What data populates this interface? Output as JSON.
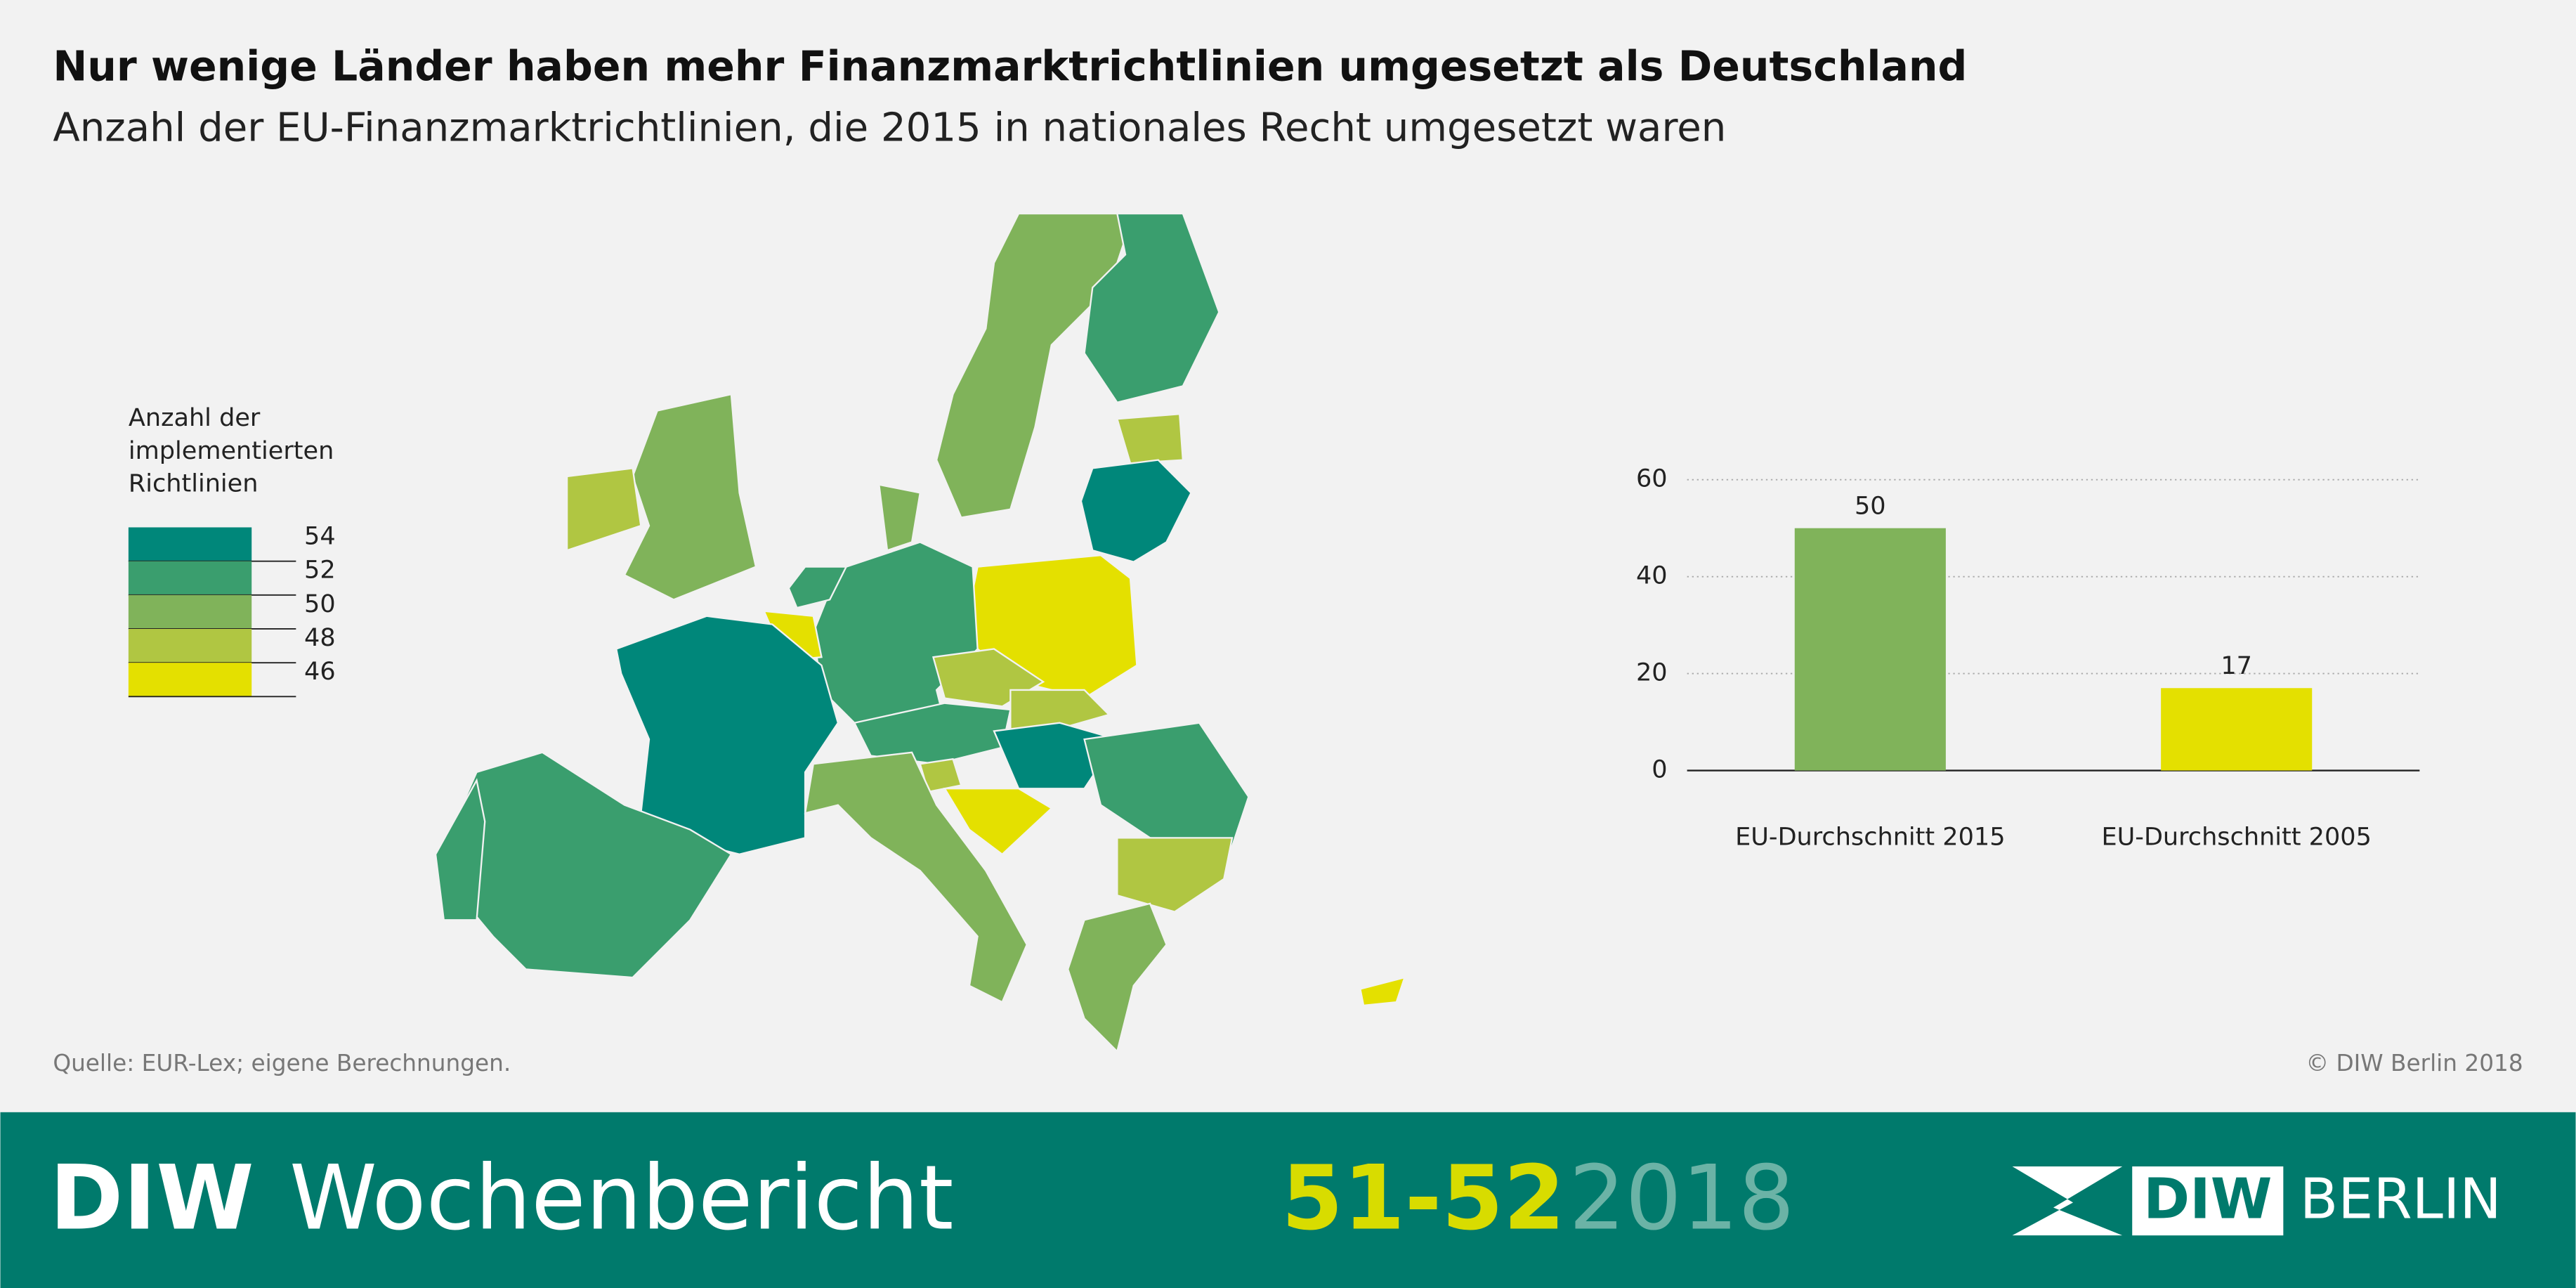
{
  "header": {
    "title": "Nur wenige Länder haben mehr Finanzmarktrichtlinien umgesetzt als Deutschland",
    "subtitle": "Anzahl der EU-Finanzmarktrichtlinien, die 2015 in nationales Recht umgesetzt waren"
  },
  "chart_data": [
    {
      "type": "map",
      "legend_title": [
        "Anzahl der",
        "implementierten",
        "Richtlinien"
      ],
      "legend": [
        {
          "value": 54,
          "color": "#00877a"
        },
        {
          "value": 52,
          "color": "#3a9e6e"
        },
        {
          "value": 50,
          "color": "#80b35a"
        },
        {
          "value": 48,
          "color": "#b0c642"
        },
        {
          "value": 46,
          "color": "#e4e000"
        }
      ],
      "values": [
        50,
        52,
        48,
        54,
        46,
        52,
        52,
        50,
        46,
        54,
        52,
        52,
        50,
        48,
        48,
        52,
        48,
        54,
        48,
        46,
        50,
        52,
        48,
        50,
        46
      ]
    },
    {
      "type": "bar",
      "categories": [
        "EU-Durchschnitt 2015",
        "EU-Durchschnitt 2005"
      ],
      "values": [
        50,
        17
      ],
      "colors": [
        "#80b35a",
        "#e4e000"
      ],
      "ylim": [
        0,
        60
      ],
      "yticks": [
        0,
        20,
        40,
        60
      ],
      "grid": true
    }
  ],
  "footer": {
    "source": "Quelle: EUR-Lex; eigene Berechnungen.",
    "copyright": "© DIW Berlin 2018"
  },
  "banner": {
    "brand": "DIW",
    "publication": "Wochenbericht",
    "issue": "51-52",
    "year": "2018",
    "logo_text": "DIW",
    "logo_city": "BERLIN"
  }
}
